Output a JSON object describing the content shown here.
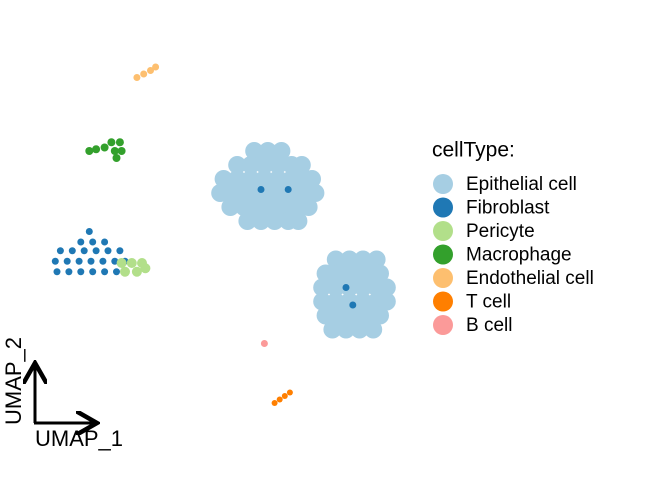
{
  "chart_data": {
    "type": "scatter",
    "x_label": "UMAP_1",
    "y_label": "UMAP_2",
    "legend_title": "cellType:",
    "xlim": [
      -10,
      11
    ],
    "ylim": [
      -10,
      10
    ],
    "legend": "right",
    "series": [
      {
        "name": "Epithelial cell",
        "color": "#a6cee3",
        "x": [
          2.6,
          3.4,
          4.2,
          1.6,
          2.4,
          3.2,
          4.0,
          4.8,
          5.4,
          0.8,
          1.6,
          2.4,
          3.2,
          4.0,
          4.8,
          5.6,
          6.0,
          0.6,
          1.4,
          2.2,
          3.0,
          3.8,
          4.6,
          5.4,
          6.2,
          1.2,
          2.0,
          2.8,
          3.6,
          4.4,
          5.2,
          5.8,
          2.2,
          3.0,
          3.8,
          4.6,
          5.2,
          7.4,
          8.2,
          9.0,
          9.8,
          6.8,
          7.6,
          8.4,
          9.2,
          10.0,
          6.6,
          7.4,
          8.2,
          9.0,
          9.8,
          10.4,
          6.6,
          7.4,
          8.2,
          9.0,
          9.8,
          10.4,
          6.8,
          7.6,
          8.4,
          9.2,
          10.0,
          7.2,
          8.0,
          8.8,
          9.6
        ],
        "y": [
          4.8,
          4.8,
          4.8,
          4.0,
          4.0,
          4.0,
          4.0,
          4.0,
          4.0,
          3.2,
          3.2,
          3.2,
          3.2,
          3.2,
          3.2,
          3.2,
          3.2,
          2.4,
          2.4,
          2.4,
          2.4,
          2.4,
          2.4,
          2.4,
          2.4,
          1.6,
          1.6,
          1.6,
          1.6,
          1.6,
          1.6,
          1.6,
          0.8,
          0.8,
          0.8,
          0.8,
          0.8,
          -1.4,
          -1.4,
          -1.4,
          -1.4,
          -2.2,
          -2.2,
          -2.2,
          -2.2,
          -2.2,
          -3.0,
          -3.0,
          -3.0,
          -3.0,
          -3.0,
          -3.0,
          -3.8,
          -3.8,
          -3.8,
          -3.8,
          -3.8,
          -3.8,
          -4.6,
          -4.6,
          -4.6,
          -4.6,
          -4.6,
          -5.4,
          -5.4,
          -5.4,
          -5.4
        ]
      },
      {
        "name": "Fibroblast",
        "color": "#1f78b4",
        "x": [
          -7.1,
          -7.6,
          -6.9,
          -6.2,
          -8.8,
          -8.1,
          -7.4,
          -6.7,
          -6.0,
          -5.3,
          -9.1,
          -8.4,
          -7.7,
          -7.0,
          -6.3,
          -5.6,
          -5.0,
          -9.0,
          -8.3,
          -7.6,
          -6.9,
          -6.2,
          -5.5,
          3.0,
          4.6,
          8.0,
          8.4
        ],
        "y": [
          0.2,
          -0.4,
          -0.4,
          -0.4,
          -0.9,
          -0.9,
          -0.9,
          -0.9,
          -0.9,
          -0.9,
          -1.5,
          -1.5,
          -1.5,
          -1.5,
          -1.5,
          -1.5,
          -1.5,
          -2.1,
          -2.1,
          -2.1,
          -2.1,
          -2.1,
          -2.1,
          2.6,
          2.6,
          -3.0,
          -4.0
        ]
      },
      {
        "name": "Pericyte",
        "color": "#b2df8a",
        "x": [
          -5.2,
          -4.6,
          -4.0,
          -5.0,
          -4.3,
          -3.8
        ],
        "y": [
          -1.6,
          -1.6,
          -1.6,
          -2.1,
          -2.1,
          -1.9
        ]
      },
      {
        "name": "Macrophage",
        "color": "#33a02c",
        "x": [
          -5.8,
          -5.3,
          -5.6,
          -5.2,
          -5.5,
          -6.2,
          -6.7,
          -7.1
        ],
        "y": [
          5.3,
          5.3,
          4.8,
          4.8,
          4.4,
          5.0,
          4.9,
          4.8
        ]
      },
      {
        "name": "Endothelial cell",
        "color": "#fdbf6f",
        "x": [
          -4.3,
          -3.9,
          -3.5,
          -3.2
        ],
        "y": [
          9.0,
          9.2,
          9.4,
          9.6
        ]
      },
      {
        "name": "T cell",
        "color": "#ff7f00",
        "x": [
          3.8,
          4.1,
          4.4,
          4.7
        ],
        "y": [
          -9.6,
          -9.4,
          -9.2,
          -9.0
        ]
      },
      {
        "name": "B cell",
        "color": "#fb9a99",
        "x": [
          3.2
        ],
        "y": [
          -6.2
        ]
      }
    ]
  }
}
